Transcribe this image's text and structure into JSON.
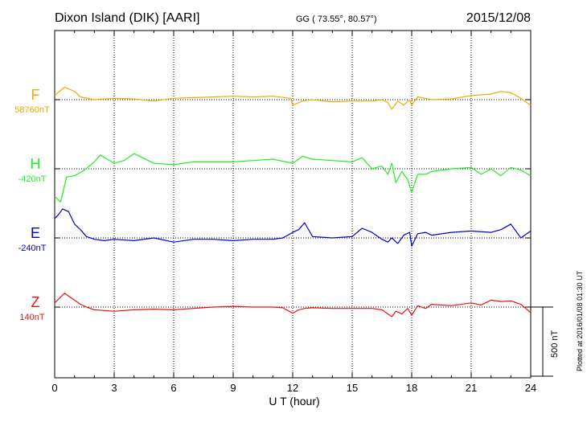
{
  "header": {
    "station": "Dixon Island (DIK)  [AARI]",
    "coords": "GG ( 73.55°,  80.57°)",
    "date": "2015/12/08"
  },
  "side_note": "Plotted at 2016/01/08 01:30 UT",
  "chart_data": {
    "type": "line",
    "xlabel": "U T (hour)",
    "xlim": [
      0,
      24
    ],
    "x_ticks": [
      "0",
      "3",
      "6",
      "9",
      "12",
      "15",
      "18",
      "21",
      "24"
    ],
    "scale_bar_label": "500 nT",
    "scale_bar_nT": 500,
    "panel_span_nT": 500,
    "series": [
      {
        "name": "F",
        "baseline_label": "58760nT",
        "baseline_nT": 58760,
        "color": "#f2a900",
        "x": [
          0,
          0.5,
          1,
          1.3,
          2,
          3,
          4,
          5,
          6,
          7,
          8,
          9,
          10,
          11,
          11.9,
          12,
          12.5,
          13,
          14,
          15,
          16,
          16.5,
          16.8,
          17,
          17.3,
          17.6,
          17.9,
          18,
          18.3,
          18.7,
          19,
          20,
          21,
          22,
          22.5,
          23,
          23.5,
          24
        ],
        "values": [
          58790,
          58850,
          58820,
          58780,
          58760,
          58770,
          58765,
          58750,
          58770,
          58775,
          58780,
          58785,
          58780,
          58785,
          58770,
          58720,
          58750,
          58760,
          58745,
          58750,
          58750,
          58760,
          58740,
          58690,
          58750,
          58720,
          58760,
          58720,
          58780,
          58770,
          58760,
          58765,
          58790,
          58800,
          58820,
          58810,
          58770,
          58720
        ]
      },
      {
        "name": "H",
        "baseline_label": "-420nT",
        "baseline_nT": -420,
        "color": "#22ee22",
        "x": [
          0,
          0.3,
          0.6,
          1,
          1.5,
          2,
          2.3,
          3,
          3.5,
          4,
          5,
          6,
          7,
          8,
          9,
          10,
          11,
          12,
          12.5,
          13,
          14,
          15,
          15.5,
          16,
          16.5,
          16.8,
          17,
          17.2,
          17.5,
          17.8,
          18,
          18.3,
          18.7,
          19,
          20,
          21,
          21.5,
          22,
          22.5,
          23,
          23.5,
          24
        ],
        "values": [
          -620,
          -660,
          -480,
          -470,
          -430,
          -370,
          -320,
          -380,
          -360,
          -310,
          -380,
          -390,
          -370,
          -370,
          -370,
          -360,
          -350,
          -380,
          -330,
          -350,
          -360,
          -370,
          -340,
          -420,
          -400,
          -460,
          -380,
          -520,
          -440,
          -500,
          -590,
          -460,
          -460,
          -440,
          -420,
          -410,
          -460,
          -420,
          -470,
          -410,
          -430,
          -470
        ]
      },
      {
        "name": "E",
        "baseline_label": "-240nT",
        "baseline_nT": -240,
        "color": "#0000dd",
        "x": [
          0,
          0.2,
          0.4,
          0.7,
          1,
          1.3,
          1.6,
          2,
          2.5,
          3,
          4,
          5,
          6,
          7,
          8,
          9,
          10,
          11,
          11.5,
          12,
          12.3,
          12.6,
          13,
          14,
          15,
          15.5,
          16,
          16.5,
          16.8,
          17,
          17.3,
          17.6,
          17.9,
          18,
          18.3,
          18.7,
          19,
          20,
          21,
          22,
          22.5,
          23,
          23.5,
          24
        ],
        "values": [
          -100,
          -70,
          -30,
          -50,
          -140,
          -180,
          -230,
          -250,
          -260,
          -250,
          -260,
          -240,
          -270,
          -250,
          -250,
          -260,
          -250,
          -250,
          -240,
          -200,
          -180,
          -130,
          -230,
          -240,
          -230,
          -170,
          -200,
          -250,
          -270,
          -240,
          -280,
          -220,
          -200,
          -300,
          -210,
          -200,
          -220,
          -200,
          -190,
          -200,
          -180,
          -140,
          -240,
          -190
        ]
      },
      {
        "name": "Z",
        "baseline_label": "140nT",
        "baseline_nT": 140,
        "color": "#ee1111",
        "x": [
          0,
          0.5,
          0.8,
          1,
          1.3,
          1.6,
          2,
          3,
          4,
          5,
          6,
          7,
          8,
          9,
          10,
          11,
          11.5,
          12,
          12.3,
          12.6,
          13,
          14,
          15,
          16,
          16.5,
          16.8,
          17,
          17.2,
          17.5,
          17.8,
          18,
          18.3,
          18.7,
          19,
          20,
          21,
          21.5,
          22,
          22.5,
          23,
          23.5,
          24
        ],
        "values": [
          170,
          240,
          210,
          190,
          160,
          140,
          120,
          110,
          120,
          125,
          120,
          130,
          140,
          145,
          140,
          140,
          135,
          95,
          120,
          130,
          135,
          130,
          130,
          130,
          120,
          90,
          70,
          110,
          90,
          130,
          80,
          150,
          130,
          160,
          150,
          170,
          155,
          190,
          180,
          185,
          160,
          100
        ]
      }
    ]
  }
}
